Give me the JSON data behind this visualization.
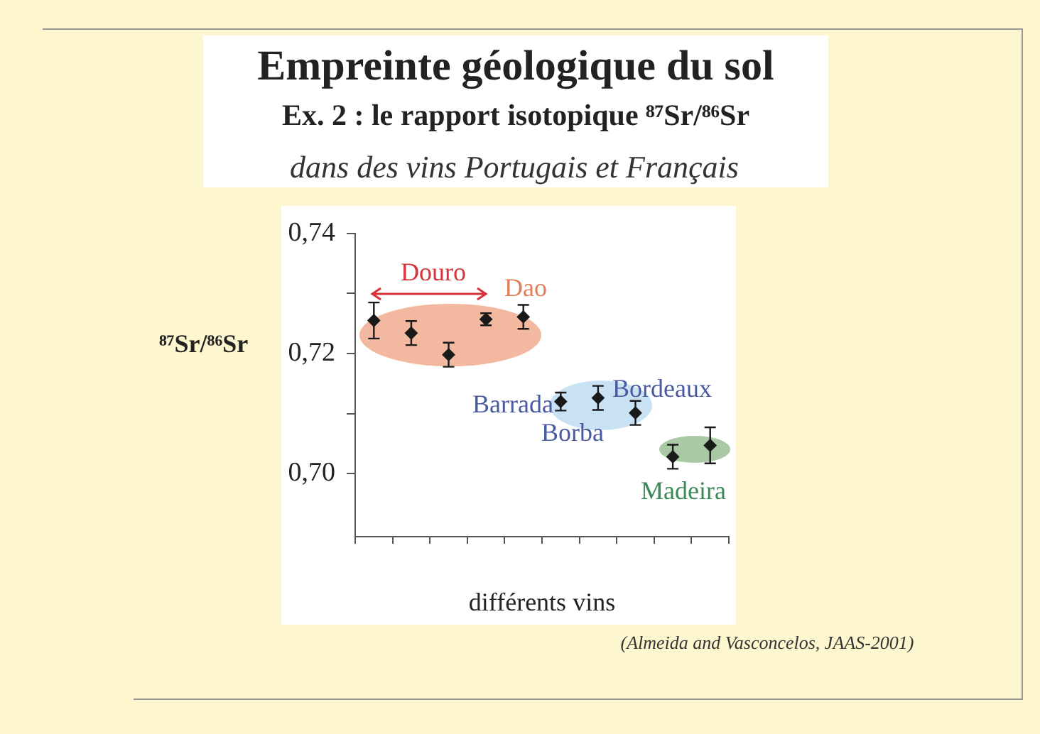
{
  "chart_data": {
    "type": "scatter",
    "title": "Empreinte géologique du sol",
    "subtitle": "Ex. 2 : le rapport isotopique ⁸⁷Sr/⁸⁶Sr",
    "xlabel": "différents vins",
    "ylabel": "⁸⁷Sr/⁸⁶Sr",
    "categories": [
      null,
      null,
      null,
      null,
      null,
      null,
      null,
      null,
      null,
      null
    ],
    "series": [
      {
        "color": "#1a1a1a",
        "values": [
          0.7255,
          0.7234,
          0.7198,
          0.7257,
          0.7261,
          0.712,
          0.7126,
          0.7101,
          0.7028,
          0.7047
        ],
        "errors": [
          0.003,
          0.002,
          0.002,
          0.001,
          0.002,
          0.0015,
          0.002,
          0.002,
          0.002,
          0.003
        ]
      }
    ],
    "ylim": [
      0.6895,
      0.74
    ],
    "yticks": [
      {
        "value": 0.7,
        "label": "0,70"
      },
      {
        "value": 0.71,
        "label": null
      },
      {
        "value": 0.72,
        "label": "0,72"
      },
      {
        "value": 0.73,
        "label": null
      },
      {
        "value": 0.74,
        "label": "0,74"
      }
    ],
    "annotations": [
      "dans des vins Portugais et Français",
      "Douro",
      "Dao",
      "Barrada",
      "Bordeaux",
      "Borba",
      "Madeira",
      "(Almeida and Vasconcelos, JAAS-2001)"
    ],
    "marker": "diamond",
    "grid": false,
    "legend": false,
    "tick_labels": "y"
  }
}
